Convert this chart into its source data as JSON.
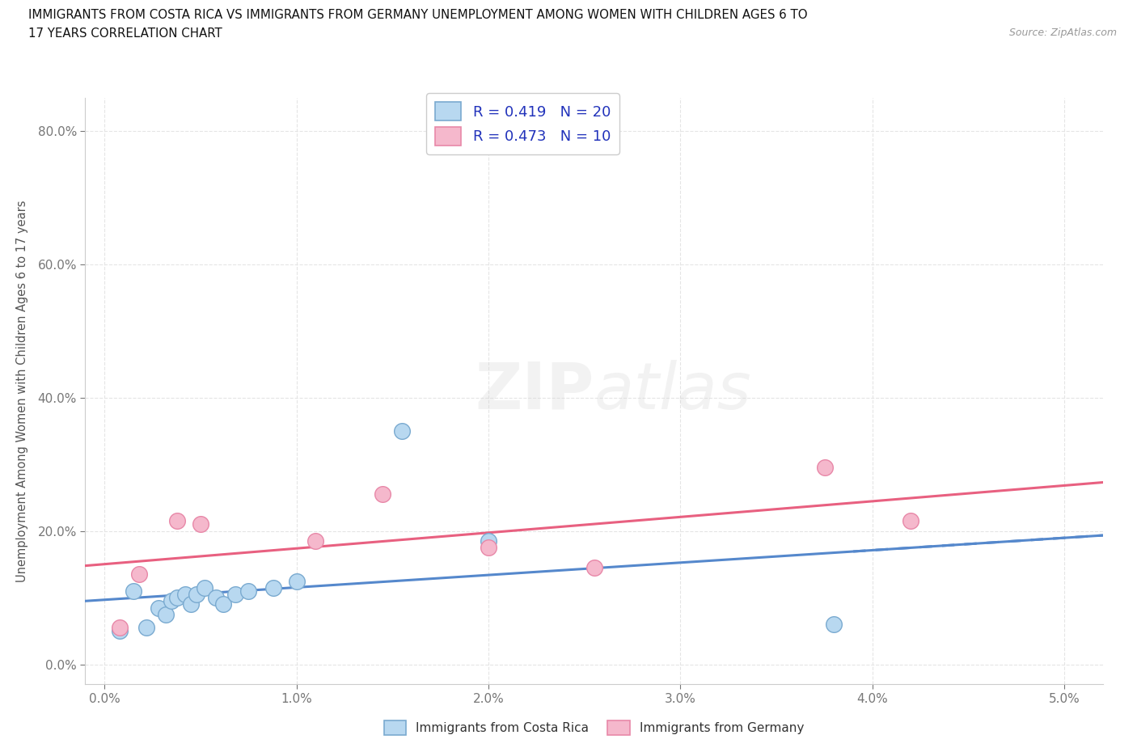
{
  "title_line1": "IMMIGRANTS FROM COSTA RICA VS IMMIGRANTS FROM GERMANY UNEMPLOYMENT AMONG WOMEN WITH CHILDREN AGES 6 TO",
  "title_line2": "17 YEARS CORRELATION CHART",
  "source": "Source: ZipAtlas.com",
  "xlim": [
    -0.1,
    5.2
  ],
  "ylim": [
    -3.0,
    85.0
  ],
  "xticks": [
    0.0,
    1.0,
    2.0,
    3.0,
    4.0,
    5.0
  ],
  "yticks": [
    0.0,
    20.0,
    40.0,
    60.0,
    80.0
  ],
  "legend1_label": "R = 0.419   N = 20",
  "legend2_label": "R = 0.473   N = 10",
  "watermark_top": "ZIP",
  "watermark_bot": "atlas",
  "series1_label": "Immigrants from Costa Rica",
  "series2_label": "Immigrants from Germany",
  "scatter_blue_x": [
    0.08,
    0.15,
    0.22,
    0.28,
    0.32,
    0.35,
    0.38,
    0.42,
    0.45,
    0.48,
    0.52,
    0.58,
    0.62,
    0.68,
    0.75,
    0.88,
    1.0,
    1.55,
    2.0,
    3.8
  ],
  "scatter_blue_y": [
    5.0,
    11.0,
    5.5,
    8.5,
    7.5,
    9.5,
    10.0,
    10.5,
    9.0,
    10.5,
    11.5,
    10.0,
    9.0,
    10.5,
    11.0,
    11.5,
    12.5,
    35.0,
    18.5,
    6.0
  ],
  "scatter_pink_x": [
    0.08,
    0.18,
    0.38,
    0.5,
    1.1,
    1.45,
    2.0,
    2.55,
    3.75,
    4.2
  ],
  "scatter_pink_y": [
    5.5,
    13.5,
    21.5,
    21.0,
    18.5,
    25.5,
    17.5,
    14.5,
    29.5,
    21.5
  ],
  "blue_fill": "#b8d8f0",
  "pink_fill": "#f5b8cc",
  "blue_edge": "#7aaad0",
  "pink_edge": "#e888a8",
  "blue_line_color": "#5588cc",
  "pink_line_color": "#e86080",
  "grid_color": "#e5e5e5",
  "ylabel": "Unemployment Among Women with Children Ages 6 to 17 years",
  "bg": "#ffffff",
  "title_color": "#111111",
  "axis_label_color": "#555555",
  "tick_color": "#777777",
  "source_color": "#999999",
  "legend_label_color": "#2233bb"
}
